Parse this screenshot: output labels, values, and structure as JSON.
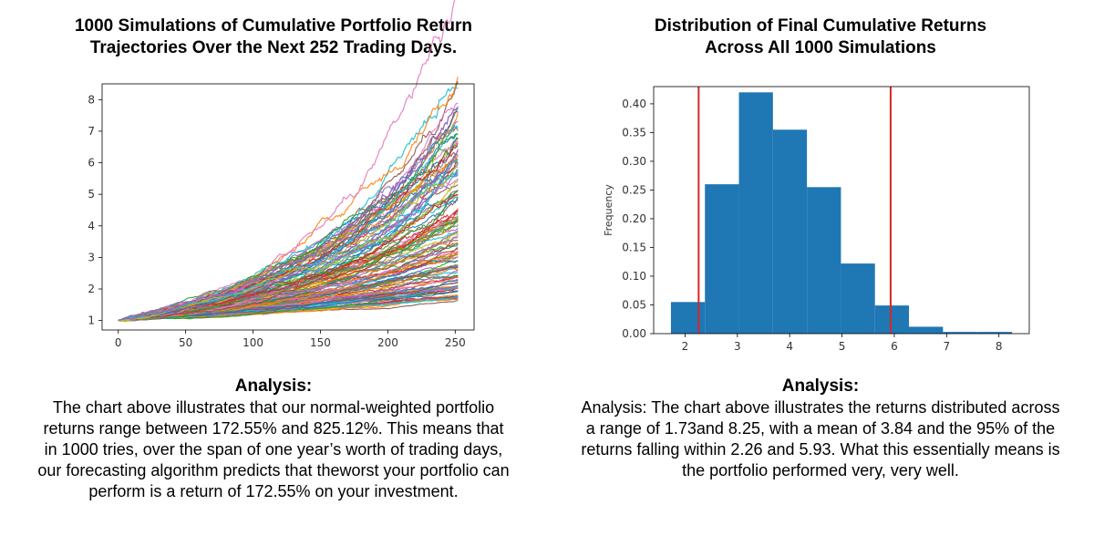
{
  "left": {
    "title_lines": [
      "1000 Simulations of Cumulative Portfolio Return",
      "Trajectories Over the Next 252 Trading Days."
    ],
    "analysis_heading": "Analysis:",
    "analysis_lines": [
      "The chart above illustrates that our normal-weighted portfolio",
      "returns range between 172.55% and 825.12%. This means that",
      "in 1000 tries, over the span of one year’s worth of trading days,",
      "our forecasting algorithm predicts that theworst your portfolio can",
      "perform is a return of 172.55% on your investment."
    ]
  },
  "right": {
    "title_lines": [
      "Distribution of Final Cumulative Returns",
      "Across All 1000 Simulations"
    ],
    "analysis_heading": "Analysis:",
    "analysis_lines": [
      "Analysis: The chart above illustrates the returns distributed across",
      "a range of 1.73and 8.25, with a mean of 3.84 and the 95% of the",
      "returns falling within 2.26 and 5.93. What this essentially means is",
      "the portfolio performed very, very well."
    ]
  },
  "chart_data": [
    {
      "type": "line",
      "description_series": "1000 simulated cumulative return paths",
      "x_range": [
        0,
        252
      ],
      "xlim": [
        -12,
        264
      ],
      "ylim": [
        0.7,
        8.5
      ],
      "xticks": [
        0,
        50,
        100,
        150,
        200,
        250
      ],
      "yticks": [
        1,
        2,
        3,
        4,
        5,
        6,
        7,
        8
      ],
      "start_value": 1.0,
      "final_min": 1.73,
      "final_max": 8.25,
      "final_mean": 3.84,
      "xlabel": "",
      "ylabel": "",
      "colors": [
        "#1f77b4",
        "#ff7f0e",
        "#2ca02c",
        "#d62728",
        "#9467bd",
        "#8c564b",
        "#e377c2",
        "#7f7f7f",
        "#bcbd22",
        "#17becf"
      ]
    },
    {
      "type": "bar",
      "subtype": "histogram",
      "bin_edges": [
        1.73,
        2.38,
        3.03,
        3.68,
        4.33,
        4.98,
        5.63,
        6.28,
        6.93,
        7.58,
        8.25
      ],
      "values": [
        0.055,
        0.26,
        0.42,
        0.355,
        0.255,
        0.122,
        0.049,
        0.012,
        0.003,
        0.003
      ],
      "xlim": [
        1.4,
        8.58
      ],
      "ylim": [
        0,
        0.43
      ],
      "xticks": [
        2,
        3,
        4,
        5,
        6,
        7,
        8
      ],
      "yticks": [
        0.0,
        0.05,
        0.1,
        0.15,
        0.2,
        0.25,
        0.3,
        0.35,
        0.4
      ],
      "ytick_labels": [
        "0.00",
        "0.05",
        "0.10",
        "0.15",
        "0.20",
        "0.25",
        "0.30",
        "0.35",
        "0.40"
      ],
      "xlabel": "",
      "ylabel": "Frequency",
      "vlines": [
        2.26,
        5.93
      ],
      "bar_color": "#1f77b4",
      "vline_color": "#d62728"
    }
  ]
}
